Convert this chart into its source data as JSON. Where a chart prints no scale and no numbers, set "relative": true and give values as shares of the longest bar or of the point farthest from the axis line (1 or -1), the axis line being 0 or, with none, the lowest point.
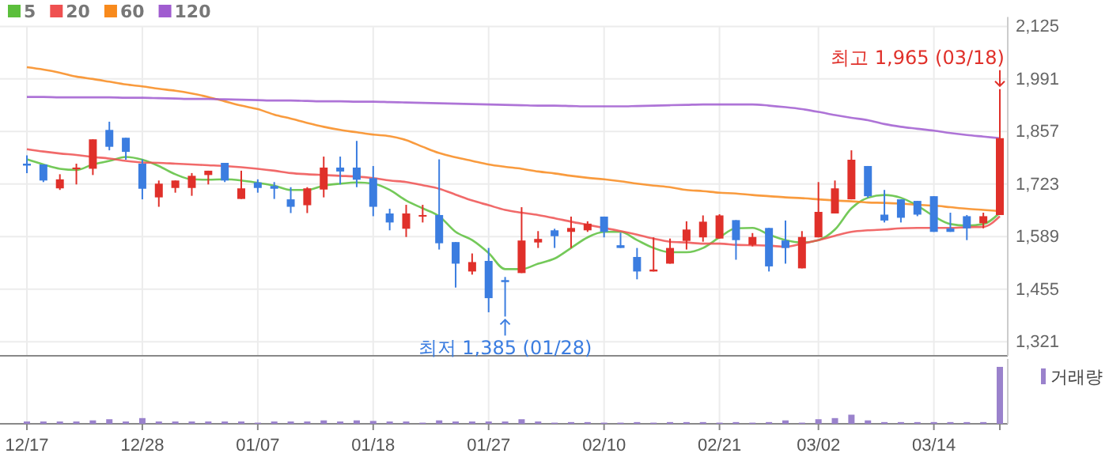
{
  "chart_data": [
    {
      "type": "candlestick",
      "categories": [
        "12/17",
        null,
        null,
        null,
        null,
        null,
        null,
        "12/28",
        null,
        null,
        null,
        null,
        null,
        null,
        "01/07",
        null,
        null,
        null,
        null,
        null,
        null,
        "01/18",
        null,
        null,
        null,
        null,
        null,
        null,
        "01/27",
        null,
        null,
        null,
        null,
        null,
        null,
        "02/10",
        null,
        null,
        null,
        null,
        null,
        null,
        "02/21",
        null,
        null,
        null,
        null,
        null,
        "03/02",
        null,
        null,
        null,
        null,
        null,
        null,
        "03/14",
        null,
        null,
        null,
        null
      ],
      "ohlc": [
        [
          1775,
          1796,
          1751,
          1770
        ],
        [
          1773,
          1773,
          1728,
          1732
        ],
        [
          1712,
          1748,
          1708,
          1735
        ],
        [
          1761,
          1775,
          1722,
          1765
        ],
        [
          1762,
          1837,
          1746,
          1837
        ],
        [
          1861,
          1882,
          1809,
          1818
        ],
        [
          1841,
          1841,
          1785,
          1805
        ],
        [
          1775,
          1786,
          1684,
          1711
        ],
        [
          1689,
          1732,
          1665,
          1724
        ],
        [
          1713,
          1732,
          1701,
          1732
        ],
        [
          1713,
          1751,
          1693,
          1744
        ],
        [
          1746,
          1757,
          1722,
          1757
        ],
        [
          1777,
          1777,
          1728,
          1732
        ],
        [
          1685,
          1757,
          1685,
          1712
        ],
        [
          1727,
          1735,
          1701,
          1713
        ],
        [
          1718,
          1728,
          1685,
          1711
        ],
        [
          1684,
          1715,
          1649,
          1665
        ],
        [
          1669,
          1715,
          1649,
          1712
        ],
        [
          1709,
          1793,
          1689,
          1765
        ],
        [
          1765,
          1793,
          1722,
          1755
        ],
        [
          1765,
          1833,
          1715,
          1734
        ],
        [
          1738,
          1769,
          1641,
          1665
        ],
        [
          1648,
          1660,
          1605,
          1625
        ],
        [
          1609,
          1670,
          1588,
          1648
        ],
        [
          1641,
          1670,
          1625,
          1644
        ],
        [
          1644,
          1786,
          1556,
          1572
        ],
        [
          1575,
          1575,
          1459,
          1520
        ],
        [
          1500,
          1546,
          1492,
          1524
        ],
        [
          1527,
          1560,
          1396,
          1432
        ],
        [
          1478,
          1486,
          1385,
          1473
        ],
        [
          1496,
          1664,
          1496,
          1579
        ],
        [
          1574,
          1603,
          1560,
          1583
        ],
        [
          1605,
          1609,
          1560,
          1590
        ],
        [
          1601,
          1640,
          1560,
          1611
        ],
        [
          1605,
          1628,
          1601,
          1622
        ],
        [
          1640,
          1640,
          1587,
          1601
        ],
        [
          1567,
          1599,
          1560,
          1560
        ],
        [
          1537,
          1560,
          1480,
          1500
        ],
        [
          1500,
          1587,
          1500,
          1505
        ],
        [
          1520,
          1584,
          1520,
          1560
        ],
        [
          1578,
          1628,
          1556,
          1607
        ],
        [
          1587,
          1643,
          1576,
          1627
        ],
        [
          1584,
          1646,
          1584,
          1643
        ],
        [
          1631,
          1631,
          1530,
          1580
        ],
        [
          1568,
          1598,
          1564,
          1588
        ],
        [
          1611,
          1611,
          1500,
          1513
        ],
        [
          1579,
          1630,
          1520,
          1560
        ],
        [
          1508,
          1603,
          1508,
          1588
        ],
        [
          1587,
          1728,
          1587,
          1652
        ],
        [
          1648,
          1732,
          1648,
          1712
        ],
        [
          1684,
          1809,
          1684,
          1785
        ],
        [
          1769,
          1769,
          1688,
          1692
        ],
        [
          1645,
          1708,
          1625,
          1630
        ],
        [
          1684,
          1684,
          1625,
          1637
        ],
        [
          1680,
          1680,
          1641,
          1645
        ],
        [
          1692,
          1692,
          1601,
          1601
        ],
        [
          1610,
          1650,
          1601,
          1601
        ],
        [
          1641,
          1644,
          1580,
          1610
        ],
        [
          1623,
          1650,
          1610,
          1641
        ],
        [
          1644,
          1965,
          1644,
          1840
        ]
      ],
      "series": [
        {
          "name": "5",
          "type": "line",
          "color": "#5cbf3c",
          "values": [
            1786,
            1773,
            1762,
            1759,
            1773,
            1782,
            1792,
            1785,
            1769,
            1748,
            1735,
            1734,
            1735,
            1732,
            1726,
            1719,
            1708,
            1708,
            1719,
            1724,
            1727,
            1724,
            1708,
            1681,
            1661,
            1641,
            1601,
            1580,
            1547,
            1506,
            1506,
            1520,
            1533,
            1560,
            1587,
            1601,
            1601,
            1580,
            1560,
            1549,
            1549,
            1560,
            1587,
            1610,
            1611,
            1594,
            1580,
            1574,
            1580,
            1607,
            1661,
            1688,
            1695,
            1688,
            1668,
            1641,
            1621,
            1617,
            1621,
            1650
          ]
        },
        {
          "name": "20",
          "type": "line",
          "color": "#ef5050",
          "values": [
            1812,
            1806,
            1801,
            1797,
            1792,
            1788,
            1782,
            1778,
            1777,
            1775,
            1773,
            1771,
            1769,
            1766,
            1762,
            1757,
            1751,
            1748,
            1746,
            1744,
            1742,
            1738,
            1732,
            1728,
            1720,
            1711,
            1696,
            1681,
            1669,
            1657,
            1650,
            1644,
            1636,
            1627,
            1619,
            1611,
            1603,
            1594,
            1584,
            1576,
            1574,
            1571,
            1571,
            1568,
            1567,
            1566,
            1563,
            1571,
            1580,
            1591,
            1601,
            1605,
            1607,
            1610,
            1611,
            1611,
            1611,
            1613,
            1614,
            1641
          ]
        },
        {
          "name": "60",
          "type": "line",
          "color": "#f88a1c",
          "values": [
            2021,
            2015,
            2007,
            1997,
            1991,
            1984,
            1977,
            1972,
            1966,
            1961,
            1954,
            1945,
            1934,
            1923,
            1914,
            1900,
            1890,
            1879,
            1869,
            1861,
            1855,
            1849,
            1845,
            1835,
            1818,
            1802,
            1791,
            1782,
            1773,
            1767,
            1762,
            1755,
            1750,
            1744,
            1739,
            1735,
            1730,
            1724,
            1719,
            1715,
            1708,
            1705,
            1701,
            1699,
            1695,
            1692,
            1689,
            1687,
            1684,
            1681,
            1679,
            1676,
            1675,
            1673,
            1670,
            1668,
            1664,
            1660,
            1657,
            1654
          ]
        },
        {
          "name": "120",
          "type": "line",
          "color": "#a05cd0",
          "values": [
            1945,
            1945,
            1944,
            1944,
            1944,
            1944,
            1943,
            1943,
            1942,
            1941,
            1940,
            1940,
            1939,
            1938,
            1937,
            1936,
            1936,
            1935,
            1934,
            1934,
            1933,
            1933,
            1932,
            1931,
            1930,
            1929,
            1928,
            1927,
            1926,
            1925,
            1924,
            1923,
            1923,
            1922,
            1921,
            1921,
            1921,
            1922,
            1923,
            1924,
            1925,
            1926,
            1926,
            1926,
            1926,
            1923,
            1919,
            1914,
            1907,
            1899,
            1892,
            1886,
            1876,
            1869,
            1864,
            1859,
            1853,
            1848,
            1844,
            1840
          ]
        }
      ],
      "ylim": [
        1285,
        2125
      ],
      "yticks": [
        {
          "value": 2125,
          "label": "2,125"
        },
        {
          "value": 1991,
          "label": "1,991"
        },
        {
          "value": 1857,
          "label": "1,857"
        },
        {
          "value": 1723,
          "label": "1,723"
        },
        {
          "value": 1589,
          "label": "1,589"
        },
        {
          "value": 1455,
          "label": "1,455"
        },
        {
          "value": 1321,
          "label": "1,321"
        }
      ],
      "grid": true,
      "legend": "top left",
      "annotations": [
        "최고 1,965 (03/18)",
        {
          "text": "최저 1,385 (01/28)",
          "y": 1385
        }
      ]
    },
    {
      "type": "bar",
      "relative": true,
      "categories": [
        null,
        null,
        null,
        null,
        null,
        null,
        null,
        null,
        null,
        null,
        null,
        null,
        null,
        null,
        null,
        null,
        null,
        null,
        null,
        null,
        null,
        null,
        null,
        null,
        null,
        null,
        null,
        null,
        null,
        null,
        null,
        null,
        null,
        null,
        null,
        null,
        null,
        null,
        null,
        null,
        null,
        null,
        null,
        null,
        null,
        null,
        null,
        null,
        null,
        null,
        null,
        null,
        null,
        null,
        null,
        null,
        null,
        null,
        null,
        null
      ],
      "series": [
        {
          "name": "거래량",
          "color": "#9a82cc",
          "values": [
            0.04,
            0.04,
            0.04,
            0.04,
            0.06,
            0.08,
            0.04,
            0.1,
            0.04,
            0.04,
            0.04,
            0.04,
            0.04,
            0.04,
            0.02,
            0.04,
            0.04,
            0.04,
            0.06,
            0.04,
            0.06,
            0.05,
            0.04,
            0.04,
            0.02,
            0.06,
            0.04,
            0.04,
            0.04,
            0.04,
            0.08,
            0.04,
            0.02,
            0.03,
            0.03,
            0.02,
            0.02,
            0.03,
            0.02,
            0.03,
            0.03,
            0.03,
            0.02,
            0.03,
            0.02,
            0.03,
            0.06,
            0.02,
            0.08,
            0.1,
            0.16,
            0.06,
            0.03,
            0.03,
            0.03,
            0.03,
            0.03,
            0.03,
            0.03,
            1
          ]
        }
      ],
      "grid": "x",
      "legend": "top right"
    }
  ]
}
